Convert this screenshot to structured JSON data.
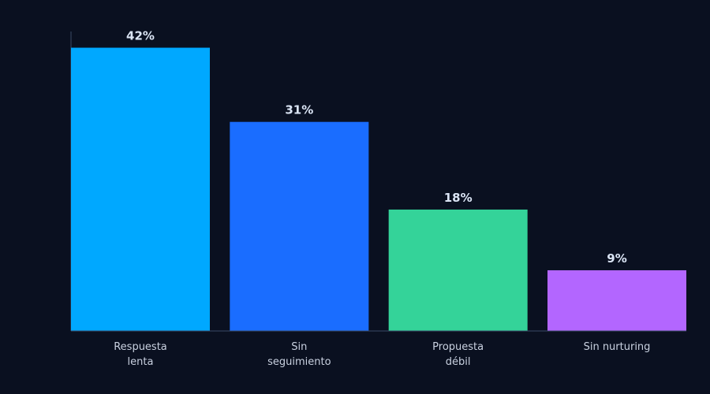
{
  "chart_data": {
    "type": "bar",
    "categories": [
      "Respuesta\nlenta",
      "Sin\nseguimiento",
      "Propuesta\ndébil",
      "Sin nurturing"
    ],
    "series": [
      {
        "values": [
          42,
          31,
          18,
          9
        ],
        "value_labels": [
          "42%",
          "31%",
          "18%",
          "9%"
        ],
        "colors": [
          "#00a8ff",
          "#1a6dff",
          "#34d399",
          "#b366ff"
        ]
      }
    ],
    "ylim": [
      0,
      44.4
    ]
  }
}
